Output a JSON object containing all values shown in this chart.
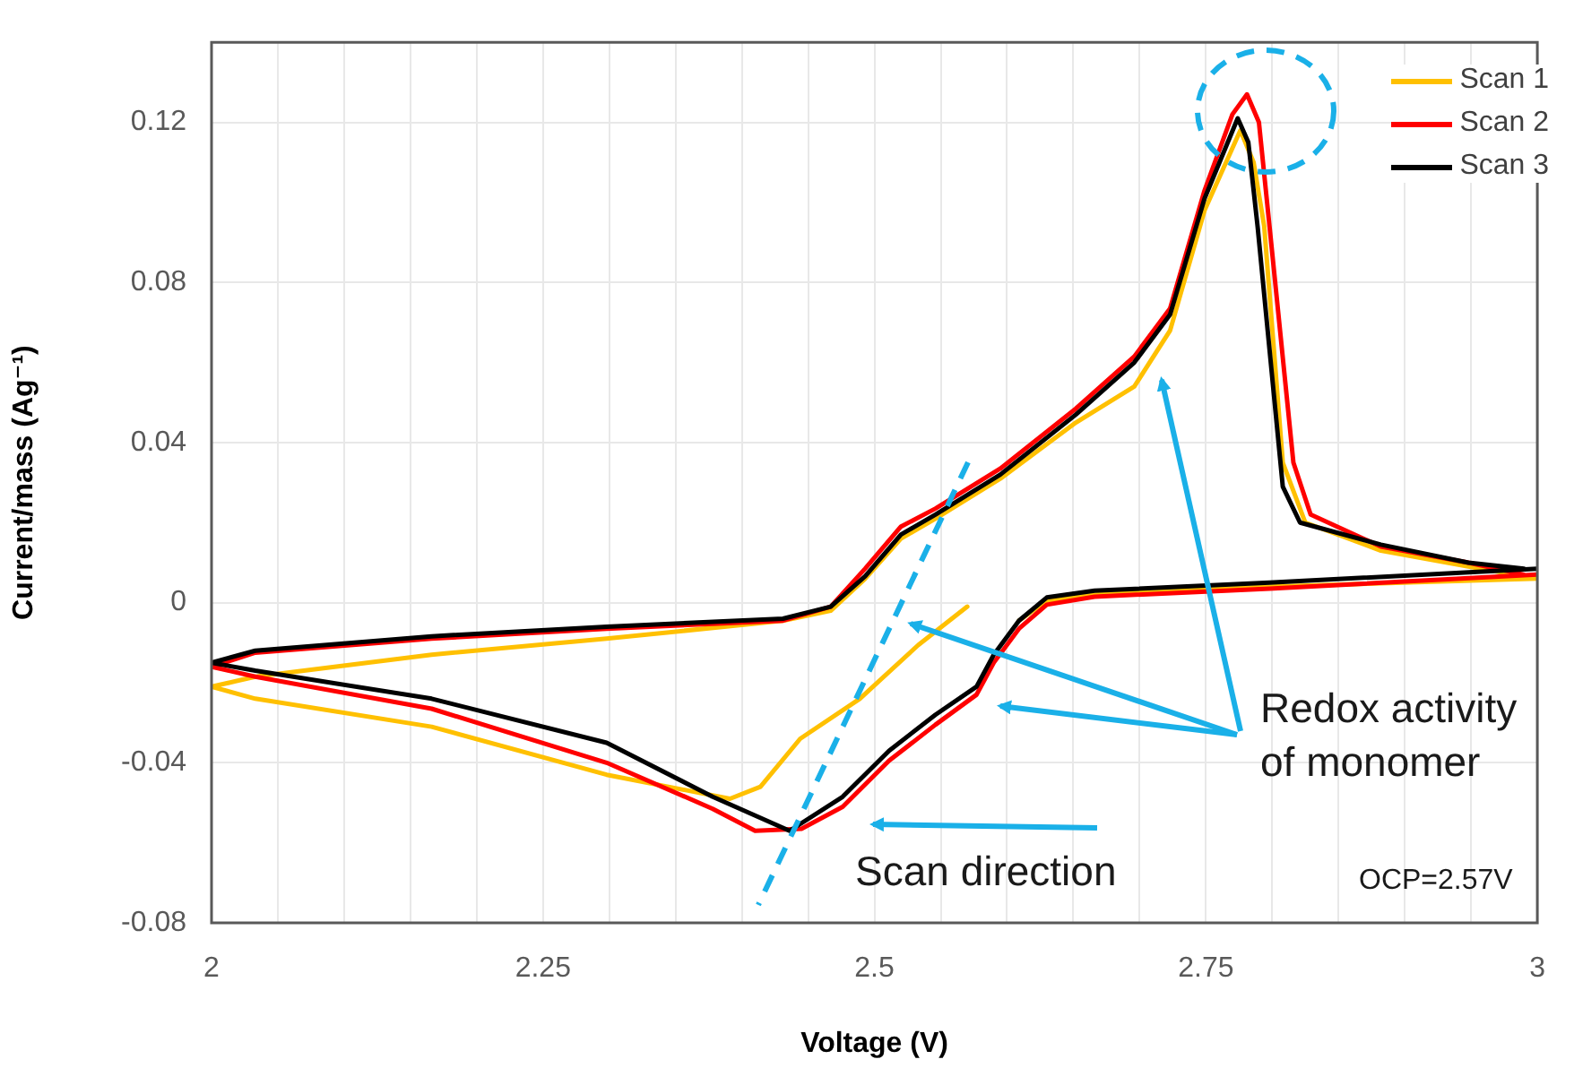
{
  "chart_data": {
    "type": "line",
    "xlabel": "Voltage (V)",
    "ylabel": "Current/mass (Ag⁻¹)",
    "xlim": [
      2,
      3
    ],
    "ylim": [
      -0.08,
      0.14
    ],
    "xticks": [
      2,
      {
        "value": 2.05,
        "label": null
      },
      {
        "value": 2.1,
        "label": null
      },
      {
        "value": 2.15,
        "label": null
      },
      {
        "value": 2.2,
        "label": null
      },
      2.25,
      {
        "value": 2.3,
        "label": null
      },
      {
        "value": 2.35,
        "label": null
      },
      {
        "value": 2.4,
        "label": null
      },
      {
        "value": 2.45,
        "label": null
      },
      2.5,
      {
        "value": 2.55,
        "label": null
      },
      {
        "value": 2.6,
        "label": null
      },
      {
        "value": 2.65,
        "label": null
      },
      {
        "value": 2.7,
        "label": null
      },
      2.75,
      {
        "value": 2.8,
        "label": null
      },
      {
        "value": 2.85,
        "label": null
      },
      {
        "value": 2.9,
        "label": null
      },
      {
        "value": 2.95,
        "label": null
      },
      3
    ],
    "yticks": [
      -0.08,
      -0.04,
      0,
      0.04,
      0.08,
      0.12
    ],
    "grid": true,
    "legend": "top right",
    "marker": "none",
    "line_style": "solid",
    "annotations": [
      "Redox activity\nof monomer",
      "Scan direction",
      "OCP=2.57V"
    ],
    "series": [
      {
        "name": "Scan 1",
        "color": "#ffc000",
        "x": [
          2.57,
          2.533,
          2.489,
          2.444,
          2.414,
          2.391,
          2.298,
          2.166,
          2.033,
          2.0,
          2.033,
          2.166,
          2.298,
          2.431,
          2.467,
          2.493,
          2.52,
          2.546,
          2.595,
          2.652,
          2.696,
          2.723,
          2.749,
          2.776,
          2.786,
          2.794,
          2.808,
          2.825,
          2.882,
          2.948,
          3.0,
          2.798,
          2.666,
          2.63,
          2.609
        ],
        "values": [
          -0.001,
          -0.0106,
          -0.024,
          -0.034,
          -0.046,
          -0.049,
          -0.043,
          -0.031,
          -0.024,
          -0.021,
          -0.0185,
          -0.013,
          -0.009,
          -0.0045,
          -0.002,
          0.006,
          0.016,
          0.021,
          0.031,
          0.045,
          0.054,
          0.068,
          0.098,
          0.118,
          0.11,
          0.094,
          0.035,
          0.02,
          0.013,
          0.009,
          0.006,
          0.004,
          0.002,
          0.0005,
          -0.0045
        ]
      },
      {
        "name": "Scan 2",
        "color": "#ff0000",
        "x": [
          3.0,
          2.798,
          2.666,
          2.63,
          2.609,
          2.59,
          2.577,
          2.546,
          2.511,
          2.476,
          2.445,
          2.41,
          2.378,
          2.298,
          2.166,
          2.033,
          2.0,
          2.033,
          2.166,
          2.298,
          2.431,
          2.467,
          2.493,
          2.52,
          2.546,
          2.595,
          2.652,
          2.696,
          2.723,
          2.749,
          2.77,
          2.781,
          2.79,
          2.798,
          2.816,
          2.829,
          2.882,
          2.948,
          2.99
        ],
        "values": [
          0.007,
          0.0035,
          0.0015,
          -0.0005,
          -0.0065,
          -0.015,
          -0.023,
          -0.0305,
          -0.0395,
          -0.051,
          -0.0565,
          -0.057,
          -0.0515,
          -0.04,
          -0.0265,
          -0.0185,
          -0.016,
          -0.0125,
          -0.009,
          -0.0065,
          -0.0045,
          -0.001,
          0.0085,
          0.019,
          0.0235,
          0.0335,
          0.0485,
          0.0615,
          0.0735,
          0.103,
          0.122,
          0.127,
          0.12,
          0.094,
          0.035,
          0.022,
          0.014,
          0.01,
          0.007
        ]
      },
      {
        "name": "Scan 3",
        "color": "#000000",
        "x": [
          3.0,
          2.798,
          2.666,
          2.63,
          2.609,
          2.59,
          2.577,
          2.546,
          2.511,
          2.476,
          2.436,
          2.378,
          2.298,
          2.166,
          2.033,
          2.0,
          2.033,
          2.166,
          2.298,
          2.431,
          2.467,
          2.493,
          2.52,
          2.546,
          2.595,
          2.652,
          2.696,
          2.723,
          2.749,
          2.774,
          2.782,
          2.789,
          2.808,
          2.821,
          2.882,
          2.948,
          2.99
        ],
        "values": [
          0.0085,
          0.005,
          0.003,
          0.0013,
          -0.0045,
          -0.013,
          -0.021,
          -0.028,
          -0.037,
          -0.0485,
          -0.057,
          -0.0485,
          -0.035,
          -0.024,
          -0.017,
          -0.015,
          -0.012,
          -0.0084,
          -0.006,
          -0.004,
          -0.001,
          0.0066,
          0.017,
          0.022,
          0.032,
          0.047,
          0.06,
          0.072,
          0.101,
          0.121,
          0.115,
          0.094,
          0.029,
          0.02,
          0.0145,
          0.01,
          0.0085
        ]
      }
    ]
  }
}
